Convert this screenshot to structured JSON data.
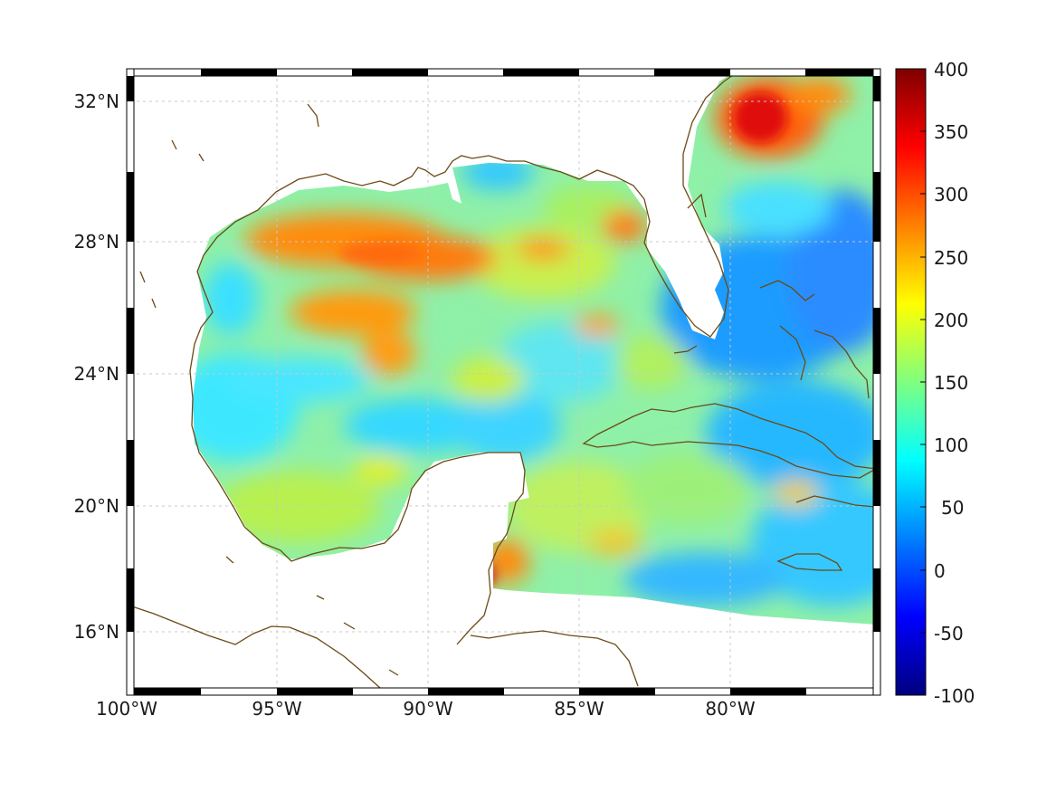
{
  "map": {
    "x_ticks": [
      "100°W",
      "95°W",
      "90°W",
      "85°W",
      "80°W"
    ],
    "y_ticks": [
      "32°N",
      "28°N",
      "24°N",
      "20°N",
      "16°N"
    ],
    "lon_range": [
      -100,
      -75
    ],
    "lat_range": [
      14.3,
      33
    ],
    "grid": true,
    "coastline_color": "#6b4a16",
    "grid_color": "#c8c8c8"
  },
  "colorbar": {
    "ticks": [
      "400",
      "350",
      "300",
      "250",
      "200",
      "150",
      "100",
      "50",
      "0",
      "-50",
      "-100"
    ],
    "range": [
      -100,
      400
    ],
    "colormap": "jet"
  }
}
